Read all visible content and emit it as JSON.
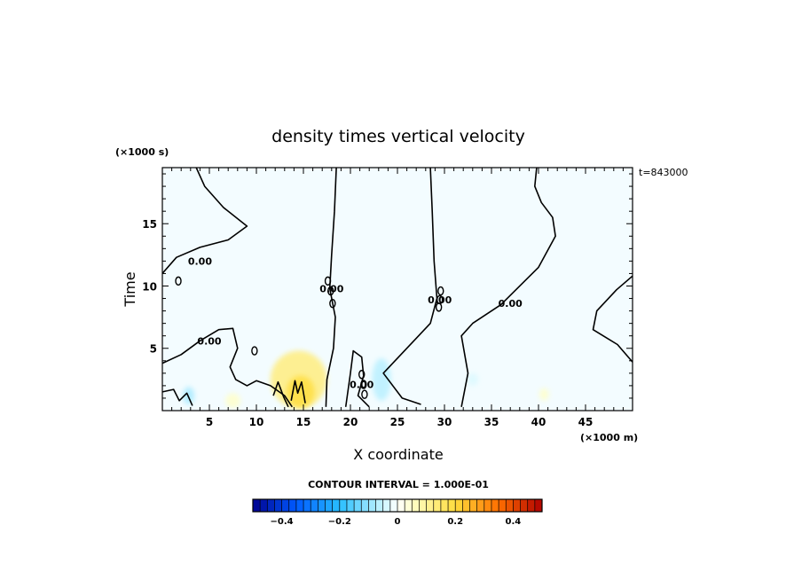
{
  "chart_data": {
    "type": "heatmap",
    "title": "density times vertical velocity",
    "xlabel": "X coordinate",
    "ylabel": "Time",
    "x_unit": "(×1000 m)",
    "y_unit": "(×1000 s)",
    "time_stamp": "t=843000",
    "xlim": [
      0,
      50
    ],
    "ylim": [
      0,
      19.5
    ],
    "x_ticks": [
      "5",
      "10",
      "15",
      "20",
      "25",
      "30",
      "35",
      "40",
      "45"
    ],
    "x_tick_values": [
      5,
      10,
      15,
      20,
      25,
      30,
      35,
      40,
      45
    ],
    "y_ticks": [
      "5",
      "10",
      "15"
    ],
    "y_tick_values": [
      5,
      10,
      15
    ],
    "contour_label": "0.00",
    "contour_interval_text": "CONTOUR INTERVAL = 1.000E-01",
    "colorbar": {
      "range": [
        -0.5,
        0.5
      ],
      "tick_labels": [
        "−0.4",
        "−0.2",
        "0",
        "0.2",
        "0.4"
      ],
      "tick_values": [
        -0.4,
        -0.2,
        0,
        0.2,
        0.4
      ],
      "low_color": "#00008f",
      "mid_color": "#ffffff",
      "high_color": "#b00000"
    },
    "zero_contours": [
      [
        [
          3.6,
          19.5
        ],
        [
          4.5,
          18
        ],
        [
          6.5,
          16.3
        ],
        [
          9,
          14.8
        ],
        [
          7,
          13.7
        ],
        [
          4,
          13.1
        ],
        [
          1.5,
          12.3
        ],
        [
          0,
          11
        ]
      ],
      [
        [
          0,
          3.8
        ],
        [
          2,
          4.5
        ],
        [
          4,
          5.6
        ],
        [
          6,
          6.5
        ],
        [
          7.5,
          6.6
        ],
        [
          8,
          5
        ],
        [
          7.2,
          3.5
        ],
        [
          7.8,
          2.5
        ],
        [
          9,
          2
        ],
        [
          10,
          2.4
        ],
        [
          11.5,
          2
        ],
        [
          13,
          1.2
        ],
        [
          13.8,
          0.3
        ]
      ],
      [
        [
          18.5,
          19.5
        ],
        [
          18.3,
          16
        ],
        [
          18,
          12.5
        ],
        [
          17.8,
          9.8
        ],
        [
          18.4,
          7.5
        ],
        [
          18.2,
          5
        ],
        [
          17.5,
          2.5
        ],
        [
          17.4,
          0.3
        ]
      ],
      [
        [
          28.5,
          19.5
        ],
        [
          28.7,
          16
        ],
        [
          28.9,
          12
        ],
        [
          29.2,
          9
        ],
        [
          28.5,
          7
        ],
        [
          26,
          5
        ],
        [
          23.5,
          3
        ],
        [
          25.5,
          1
        ],
        [
          27.5,
          0.5
        ]
      ],
      [
        [
          39.8,
          19.5
        ],
        [
          39.6,
          18
        ],
        [
          40.3,
          16.7
        ],
        [
          41.5,
          15.5
        ],
        [
          41.8,
          14
        ],
        [
          40,
          11.5
        ],
        [
          36,
          8.5
        ],
        [
          33,
          7
        ],
        [
          31.8,
          6
        ],
        [
          32.5,
          3
        ],
        [
          31.8,
          0.3
        ]
      ],
      [
        [
          50,
          10.8
        ],
        [
          48.3,
          9.7
        ],
        [
          46.2,
          8
        ],
        [
          45.8,
          6.5
        ],
        [
          48.4,
          5.3
        ],
        [
          50,
          3.9
        ]
      ],
      [
        [
          0,
          1.5
        ],
        [
          1.2,
          1.7
        ],
        [
          1.8,
          0.8
        ],
        [
          2.6,
          1.4
        ],
        [
          3.2,
          0.4
        ]
      ],
      [
        [
          11.8,
          1.2
        ],
        [
          12.3,
          2.3
        ],
        [
          12.9,
          1.1
        ],
        [
          13.4,
          0.3
        ]
      ],
      [
        [
          19.5,
          0.3
        ],
        [
          20,
          3
        ],
        [
          20.3,
          4.8
        ],
        [
          21.2,
          4.3
        ],
        [
          21.4,
          2.8
        ],
        [
          20.8,
          1.2
        ],
        [
          22,
          0.3
        ]
      ],
      [
        [
          13.7,
          0.8
        ],
        [
          14.1,
          2.4
        ],
        [
          14.4,
          1.4
        ],
        [
          14.8,
          2.3
        ],
        [
          15.2,
          0.6
        ]
      ]
    ],
    "small_loops": [
      [
        1.7,
        10.4
      ],
      [
        9.8,
        4.8
      ],
      [
        17.6,
        10.4
      ],
      [
        17.9,
        9.6
      ],
      [
        18.1,
        8.6
      ],
      [
        21.2,
        2.9
      ],
      [
        21.4,
        2.1
      ],
      [
        21.5,
        1.3
      ],
      [
        29.4,
        8.3
      ],
      [
        29.5,
        8.9
      ],
      [
        29.6,
        9.6
      ]
    ],
    "contour_label_positions": [
      [
        4,
        12
      ],
      [
        5,
        5.6
      ],
      [
        18,
        9.8
      ],
      [
        21.2,
        2.1
      ],
      [
        29.5,
        8.9
      ],
      [
        37,
        8.6
      ]
    ],
    "anomalies": [
      {
        "x": 14.5,
        "y": 2.5,
        "value": 0.08,
        "rx": 3,
        "ry": 2.3
      },
      {
        "x": 14.7,
        "y": 1.5,
        "value": 0.12,
        "rx": 1.5,
        "ry": 1.3
      },
      {
        "x": 23.3,
        "y": 2.5,
        "value": -0.04,
        "rx": 1,
        "ry": 1.7
      },
      {
        "x": 2.8,
        "y": 1.2,
        "value": -0.05,
        "rx": 0.6,
        "ry": 0.7
      },
      {
        "x": 7.5,
        "y": 0.8,
        "value": 0.03,
        "rx": 0.8,
        "ry": 0.6
      },
      {
        "x": 33,
        "y": 2.5,
        "value": -0.02,
        "rx": 0.6,
        "ry": 0.5
      },
      {
        "x": 40.6,
        "y": 1.3,
        "value": 0.03,
        "rx": 0.5,
        "ry": 0.5
      }
    ]
  }
}
